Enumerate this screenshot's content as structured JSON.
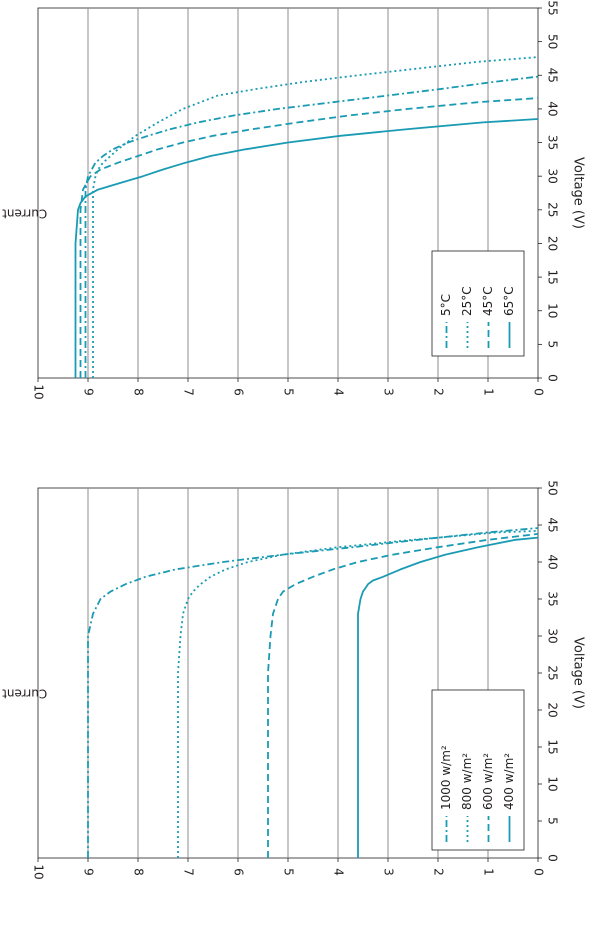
{
  "colors": {
    "curve": "#1a9bb4",
    "grid": "#8c8c8c",
    "axis": "#231f20"
  },
  "chart_data": [
    {
      "type": "line",
      "title": "",
      "xlabel": "Voltage (V)",
      "ylabel": "Current (A)",
      "xlim": [
        0,
        55
      ],
      "ylim": [
        0,
        10
      ],
      "xticks": [
        "0",
        "5",
        "10",
        "15",
        "20",
        "25",
        "30",
        "35",
        "40",
        "45",
        "50",
        "55"
      ],
      "yticks": [
        "0",
        "1",
        "2",
        "3",
        "4",
        "5",
        "6",
        "7",
        "8",
        "9",
        "10"
      ],
      "grid": "horizontal",
      "legend_position": "bottom-left",
      "series": [
        {
          "name": "5°C",
          "dash": "dashdot",
          "x": [
            0,
            10,
            20,
            25,
            28,
            30,
            32,
            33,
            34,
            35,
            36,
            37,
            38,
            39,
            40,
            41,
            42,
            43,
            44,
            44.8
          ],
          "y": [
            9.05,
            9.05,
            9.05,
            9.05,
            9.05,
            9.0,
            8.85,
            8.7,
            8.5,
            8.2,
            7.8,
            7.35,
            6.8,
            6.1,
            5.2,
            4.1,
            3.0,
            1.9,
            0.9,
            0
          ]
        },
        {
          "name": "25°C",
          "dash": "dotted",
          "x": [
            0,
            10,
            20,
            25,
            28,
            30,
            31,
            32,
            34,
            36,
            38,
            40,
            42,
            43,
            44,
            45,
            46,
            47,
            47.7
          ],
          "y": [
            8.9,
            8.9,
            8.9,
            8.9,
            8.9,
            8.85,
            8.8,
            8.7,
            8.4,
            8.05,
            7.6,
            7.1,
            6.4,
            5.6,
            4.7,
            3.6,
            2.4,
            1.2,
            0
          ]
        },
        {
          "name": "45°C",
          "dash": "dashed",
          "x": [
            0,
            10,
            20,
            25,
            28,
            30,
            31,
            32,
            33,
            34,
            35,
            36,
            37,
            38,
            39,
            40,
            41,
            41.6
          ],
          "y": [
            9.15,
            9.15,
            9.15,
            9.15,
            9.1,
            8.95,
            8.75,
            8.4,
            8.0,
            7.6,
            7.1,
            6.5,
            5.7,
            4.8,
            3.8,
            2.6,
            1.2,
            0
          ]
        },
        {
          "name": "65°C",
          "dash": "solid",
          "x": [
            0,
            10,
            20,
            25,
            26,
            27,
            28,
            29,
            30,
            31,
            32,
            33,
            34,
            35,
            36,
            37,
            38,
            38.5
          ],
          "y": [
            9.25,
            9.25,
            9.25,
            9.2,
            9.15,
            9.05,
            8.8,
            8.35,
            7.9,
            7.5,
            7.05,
            6.55,
            5.85,
            5.0,
            3.95,
            2.6,
            1.1,
            0
          ]
        }
      ]
    },
    {
      "type": "line",
      "title": "",
      "xlabel": "Voltage (V)",
      "ylabel": "Current (A)",
      "xlim": [
        0,
        50
      ],
      "ylim": [
        0,
        10
      ],
      "xticks": [
        "0",
        "5",
        "10",
        "15",
        "20",
        "25",
        "30",
        "35",
        "40",
        "45",
        "50"
      ],
      "yticks": [
        "0",
        "1",
        "2",
        "3",
        "4",
        "5",
        "6",
        "7",
        "8",
        "9",
        "10"
      ],
      "grid": "horizontal",
      "legend_position": "bottom-left",
      "series": [
        {
          "name": "1000 w/m²",
          "dash": "dashdot",
          "x": [
            0,
            10,
            20,
            25,
            30,
            33,
            35,
            36,
            37,
            38,
            39,
            40,
            41,
            42,
            43,
            44,
            44.6
          ],
          "y": [
            9.0,
            9.0,
            9.0,
            9.0,
            9.0,
            8.9,
            8.75,
            8.55,
            8.25,
            7.85,
            7.25,
            6.3,
            5.1,
            3.7,
            2.4,
            1.0,
            0
          ]
        },
        {
          "name": "800 w/m²",
          "dash": "dotted",
          "x": [
            0,
            10,
            20,
            25,
            30,
            33,
            35,
            36,
            37,
            38,
            39,
            40,
            41,
            42,
            43,
            44,
            44.2
          ],
          "y": [
            7.2,
            7.2,
            7.2,
            7.2,
            7.15,
            7.1,
            7.0,
            6.9,
            6.75,
            6.55,
            6.25,
            5.8,
            5.1,
            4.0,
            2.5,
            0.8,
            0
          ]
        },
        {
          "name": "600 w/m²",
          "dash": "dashed",
          "x": [
            0,
            10,
            20,
            25,
            30,
            33,
            35,
            36,
            37,
            38,
            39,
            40,
            41,
            42,
            43,
            43.8
          ],
          "y": [
            5.4,
            5.4,
            5.4,
            5.4,
            5.35,
            5.3,
            5.2,
            5.1,
            4.85,
            4.5,
            4.1,
            3.6,
            2.9,
            2.0,
            1.0,
            0
          ]
        },
        {
          "name": "400 w/m²",
          "dash": "solid",
          "x": [
            0,
            10,
            20,
            25,
            30,
            33,
            35,
            36,
            37,
            37.5,
            38,
            39,
            40,
            41,
            42,
            43,
            43.3
          ],
          "y": [
            3.6,
            3.6,
            3.6,
            3.6,
            3.6,
            3.6,
            3.55,
            3.5,
            3.4,
            3.3,
            3.1,
            2.75,
            2.35,
            1.85,
            1.2,
            0.45,
            0
          ]
        }
      ]
    }
  ]
}
